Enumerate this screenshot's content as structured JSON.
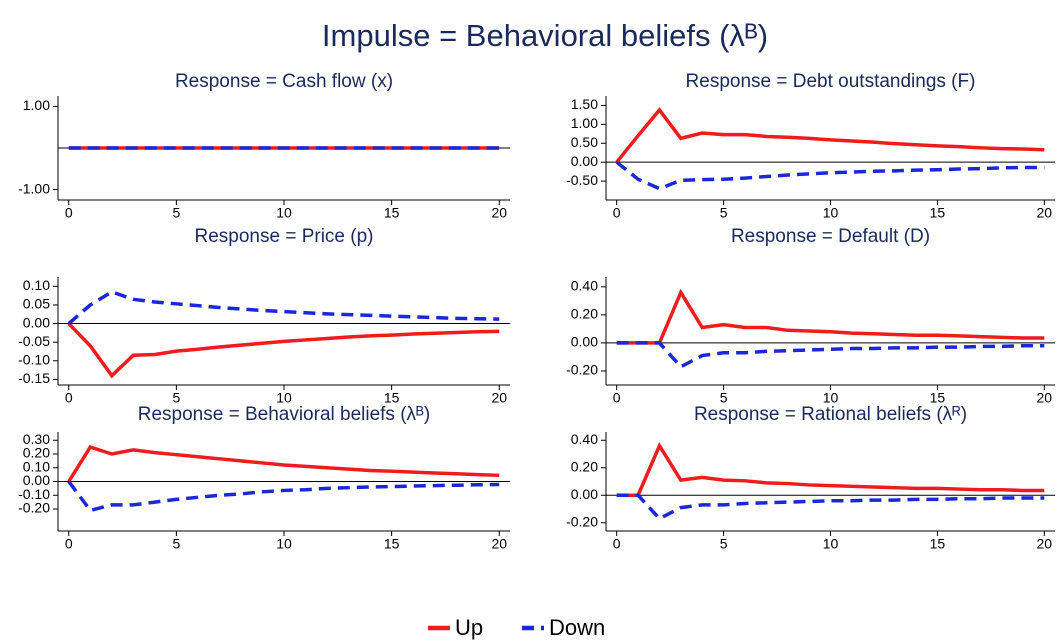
{
  "title": "Impulse = Behavioral beliefs (λᴮ)",
  "chart_data": [
    {
      "type": "line",
      "title": "Response = Cash flow (x)",
      "x": [
        0,
        1,
        2,
        3,
        4,
        5,
        6,
        7,
        8,
        9,
        10,
        11,
        12,
        13,
        14,
        15,
        16,
        17,
        18,
        19,
        20
      ],
      "xlim": [
        -0.5,
        20.5
      ],
      "xticks": [
        0,
        5,
        10,
        15,
        20
      ],
      "ylim": [
        -1.25,
        1.25
      ],
      "yticks": [
        {
          "value": 1,
          "label": "1.00"
        },
        {
          "value": -1,
          "label": "-1.00"
        }
      ],
      "zero_line": true,
      "series": [
        {
          "name": "Up",
          "color": "#ee1c1c",
          "line_style": "solid",
          "values": [
            0,
            0,
            0,
            0,
            0,
            0,
            0,
            0,
            0,
            0,
            0,
            0,
            0,
            0,
            0,
            0,
            0,
            0,
            0,
            0,
            0
          ]
        },
        {
          "name": "Down",
          "color": "#1a28d8",
          "line_style": "dashed",
          "values": [
            0,
            0,
            0,
            0,
            0,
            0,
            0,
            0,
            0,
            0,
            0,
            0,
            0,
            0,
            0,
            0,
            0,
            0,
            0,
            0,
            0
          ]
        }
      ]
    },
    {
      "type": "line",
      "title": "Response = Debt outstandings (F)",
      "x": [
        0,
        1,
        2,
        3,
        4,
        5,
        6,
        7,
        8,
        9,
        10,
        11,
        12,
        13,
        14,
        15,
        16,
        17,
        18,
        19,
        20
      ],
      "xlim": [
        -0.5,
        20.5
      ],
      "xticks": [
        0,
        5,
        10,
        15,
        20
      ],
      "ylim": [
        -1.0,
        1.75
      ],
      "yticks": [
        {
          "value": 1.5,
          "label": "1.50"
        },
        {
          "value": 1,
          "label": "1.00"
        },
        {
          "value": 0.5,
          "label": "0.50"
        },
        {
          "value": 0,
          "label": "0.00"
        },
        {
          "value": -0.5,
          "label": "-0.50"
        }
      ],
      "zero_line": true,
      "series": [
        {
          "name": "Up",
          "color": "#ee1c1c",
          "line_style": "solid",
          "values": [
            0,
            0.7,
            1.38,
            0.63,
            0.77,
            0.73,
            0.73,
            0.68,
            0.66,
            0.63,
            0.59,
            0.56,
            0.53,
            0.49,
            0.46,
            0.43,
            0.41,
            0.38,
            0.36,
            0.35,
            0.33
          ]
        },
        {
          "name": "Down",
          "color": "#1a28d8",
          "line_style": "dashed",
          "values": [
            0,
            -0.45,
            -0.7,
            -0.48,
            -0.46,
            -0.45,
            -0.42,
            -0.38,
            -0.34,
            -0.31,
            -0.28,
            -0.26,
            -0.24,
            -0.23,
            -0.21,
            -0.2,
            -0.18,
            -0.17,
            -0.15,
            -0.14,
            -0.14
          ]
        }
      ]
    },
    {
      "type": "line",
      "title": "Response = Price (p)",
      "x": [
        0,
        1,
        2,
        3,
        4,
        5,
        6,
        7,
        8,
        9,
        10,
        11,
        12,
        13,
        14,
        15,
        16,
        17,
        18,
        19,
        20
      ],
      "xlim": [
        -0.5,
        20.5
      ],
      "xticks": [
        0,
        5,
        10,
        15,
        20
      ],
      "ylim": [
        -0.165,
        0.125
      ],
      "yticks": [
        {
          "value": 0.1,
          "label": "0.10"
        },
        {
          "value": 0.05,
          "label": "0.05"
        },
        {
          "value": 0,
          "label": "0.00"
        },
        {
          "value": -0.05,
          "label": "-0.05"
        },
        {
          "value": -0.1,
          "label": "-0.10"
        },
        {
          "value": -0.15,
          "label": "-0.15"
        }
      ],
      "zero_line": true,
      "series": [
        {
          "name": "Up",
          "color": "#ee1c1c",
          "line_style": "solid",
          "values": [
            0,
            -0.06,
            -0.14,
            -0.085,
            -0.083,
            -0.074,
            -0.069,
            -0.063,
            -0.058,
            -0.053,
            -0.048,
            -0.044,
            -0.04,
            -0.036,
            -0.033,
            -0.031,
            -0.028,
            -0.026,
            -0.024,
            -0.022,
            -0.021
          ]
        },
        {
          "name": "Down",
          "color": "#1a28d8",
          "line_style": "dashed",
          "values": [
            0,
            0.05,
            0.085,
            0.065,
            0.058,
            0.053,
            0.048,
            0.043,
            0.039,
            0.035,
            0.032,
            0.029,
            0.026,
            0.024,
            0.022,
            0.02,
            0.018,
            0.016,
            0.014,
            0.013,
            0.012
          ]
        }
      ]
    },
    {
      "type": "line",
      "title": "Response = Default (D)",
      "x": [
        0,
        1,
        2,
        3,
        4,
        5,
        6,
        7,
        8,
        9,
        10,
        11,
        12,
        13,
        14,
        15,
        16,
        17,
        18,
        19,
        20
      ],
      "xlim": [
        -0.5,
        20.5
      ],
      "xticks": [
        0,
        5,
        10,
        15,
        20
      ],
      "ylim": [
        -0.3,
        0.47
      ],
      "yticks": [
        {
          "value": 0.4,
          "label": "0.40"
        },
        {
          "value": 0.2,
          "label": "0.20"
        },
        {
          "value": 0,
          "label": "0.00"
        },
        {
          "value": -0.2,
          "label": "-0.20"
        }
      ],
      "zero_line": true,
      "series": [
        {
          "name": "Up",
          "color": "#ee1c1c",
          "line_style": "solid",
          "values": [
            0,
            0,
            0,
            0.36,
            0.11,
            0.13,
            0.11,
            0.11,
            0.09,
            0.085,
            0.08,
            0.07,
            0.065,
            0.06,
            0.055,
            0.055,
            0.05,
            0.045,
            0.04,
            0.035,
            0.035
          ]
        },
        {
          "name": "Down",
          "color": "#1a28d8",
          "line_style": "dashed",
          "values": [
            0,
            0,
            0,
            -0.17,
            -0.09,
            -0.07,
            -0.07,
            -0.06,
            -0.055,
            -0.05,
            -0.045,
            -0.04,
            -0.04,
            -0.035,
            -0.035,
            -0.03,
            -0.03,
            -0.025,
            -0.025,
            -0.02,
            -0.02
          ]
        }
      ]
    },
    {
      "type": "line",
      "title": "Response = Behavioral beliefs (λᴮ)",
      "x": [
        0,
        1,
        2,
        3,
        4,
        5,
        6,
        7,
        8,
        9,
        10,
        11,
        12,
        13,
        14,
        15,
        16,
        17,
        18,
        19,
        20
      ],
      "xlim": [
        -0.5,
        20.5
      ],
      "xticks": [
        0,
        5,
        10,
        15,
        20
      ],
      "ylim": [
        -0.36,
        0.36
      ],
      "yticks": [
        {
          "value": 0.3,
          "label": "0.30"
        },
        {
          "value": 0.2,
          "label": "0.20"
        },
        {
          "value": 0.1,
          "label": "0.10"
        },
        {
          "value": 0,
          "label": "0.00"
        },
        {
          "value": -0.1,
          "label": "-0.10"
        },
        {
          "value": -0.2,
          "label": "-0.20"
        }
      ],
      "zero_line": true,
      "series": [
        {
          "name": "Up",
          "color": "#ee1c1c",
          "line_style": "solid",
          "values": [
            0,
            0.25,
            0.2,
            0.23,
            0.21,
            0.195,
            0.18,
            0.165,
            0.15,
            0.135,
            0.12,
            0.11,
            0.1,
            0.09,
            0.08,
            0.075,
            0.068,
            0.062,
            0.056,
            0.05,
            0.045
          ]
        },
        {
          "name": "Down",
          "color": "#1a28d8",
          "line_style": "dashed",
          "values": [
            0,
            -0.21,
            -0.17,
            -0.17,
            -0.15,
            -0.13,
            -0.115,
            -0.1,
            -0.09,
            -0.075,
            -0.065,
            -0.06,
            -0.05,
            -0.045,
            -0.04,
            -0.037,
            -0.033,
            -0.03,
            -0.027,
            -0.024,
            -0.022
          ]
        }
      ]
    },
    {
      "type": "line",
      "title": "Response = Rational beliefs (λᴿ)",
      "x": [
        0,
        1,
        2,
        3,
        4,
        5,
        6,
        7,
        8,
        9,
        10,
        11,
        12,
        13,
        14,
        15,
        16,
        17,
        18,
        19,
        20
      ],
      "xlim": [
        -0.5,
        20.5
      ],
      "xticks": [
        0,
        5,
        10,
        15,
        20
      ],
      "ylim": [
        -0.26,
        0.46
      ],
      "yticks": [
        {
          "value": 0.4,
          "label": "0.40"
        },
        {
          "value": 0.2,
          "label": "0.20"
        },
        {
          "value": 0,
          "label": "0.00"
        },
        {
          "value": -0.2,
          "label": "-0.20"
        }
      ],
      "zero_line": true,
      "series": [
        {
          "name": "Up",
          "color": "#ee1c1c",
          "line_style": "solid",
          "values": [
            0,
            0,
            0.36,
            0.11,
            0.13,
            0.11,
            0.105,
            0.09,
            0.085,
            0.075,
            0.07,
            0.065,
            0.06,
            0.055,
            0.05,
            0.05,
            0.045,
            0.04,
            0.04,
            0.035,
            0.035
          ]
        },
        {
          "name": "Down",
          "color": "#1a28d8",
          "line_style": "dashed",
          "values": [
            0,
            0,
            -0.17,
            -0.09,
            -0.07,
            -0.07,
            -0.06,
            -0.055,
            -0.05,
            -0.045,
            -0.04,
            -0.04,
            -0.035,
            -0.035,
            -0.03,
            -0.03,
            -0.025,
            -0.025,
            -0.02,
            -0.02,
            -0.02
          ]
        }
      ]
    }
  ]
}
